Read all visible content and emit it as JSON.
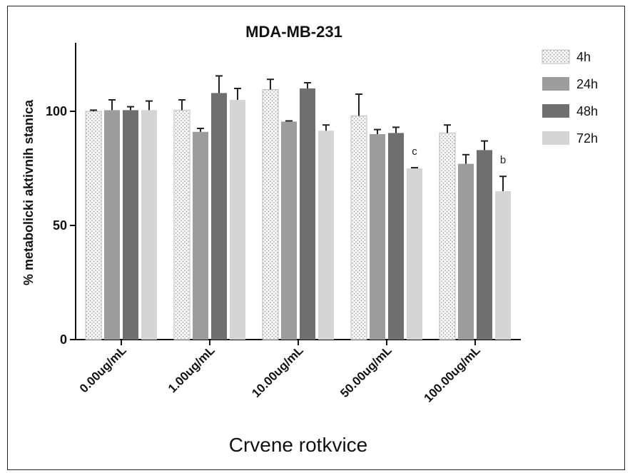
{
  "chart_data": {
    "type": "bar",
    "title": "MDA-MB-231",
    "xlabel": "Crvene rotkvice",
    "ylabel": "% metabolicki aktivnih stanica",
    "ylim": [
      0,
      125
    ],
    "yticks": [
      0,
      50,
      100
    ],
    "grid": false,
    "legend_position": "top-right",
    "categories": [
      "0.00ug/mL",
      "1.00ug/mL",
      "10.00ug/mL",
      "50.00ug/mL",
      "100.00ug/mL"
    ],
    "series": [
      {
        "name": "4h",
        "color": "#f4f4f4",
        "pattern": "dots",
        "values": [
          100,
          100.5,
          109.5,
          98,
          90.5
        ],
        "errors": [
          0.5,
          4.5,
          4.5,
          9.5,
          3.5
        ]
      },
      {
        "name": "24h",
        "color": "#9c9c9c",
        "values": [
          100.5,
          91,
          95.5,
          90,
          77
        ],
        "errors": [
          4.5,
          1.5,
          0.3,
          2,
          4
        ]
      },
      {
        "name": "48h",
        "color": "#6f6f6f",
        "values": [
          100.5,
          108,
          110,
          90.5,
          83
        ],
        "errors": [
          1.5,
          7.5,
          2.5,
          2.5,
          4
        ]
      },
      {
        "name": "72h",
        "color": "#d5d5d5",
        "values": [
          100.5,
          105,
          91.5,
          75,
          65
        ],
        "errors": [
          4,
          5,
          2.5,
          0.3,
          6.5
        ]
      }
    ],
    "annotations": [
      {
        "text": "c",
        "category_index": 3,
        "series_index": 3
      },
      {
        "text": "b",
        "category_index": 4,
        "series_index": 3
      }
    ]
  }
}
